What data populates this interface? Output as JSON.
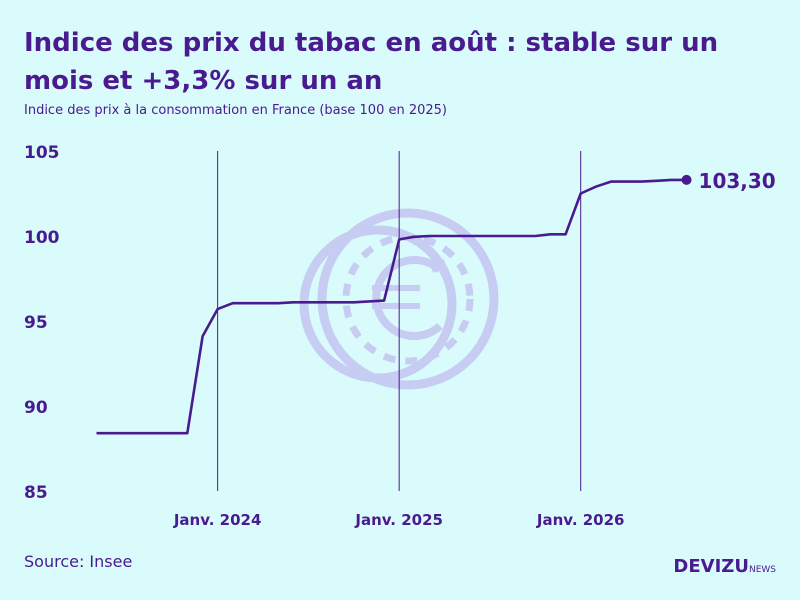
{
  "title": "Indice des prix du tabac en août : stable sur un mois et +3,3% sur un an",
  "subtitle": "Indice des prix à la consommation en France (base 100 en 2025)",
  "source": "Source: Insee",
  "brand": {
    "name": "DEVIZU",
    "suffix": "NEWS",
    "watermark": "euro-coin-icon"
  },
  "colors": {
    "background": "#d9fbfb",
    "line": "#4a1a8f",
    "watermark": "#c4c8f2"
  },
  "chart_data": {
    "type": "line",
    "title": "Indice des prix du tabac en août : stable sur un mois et +3,3% sur un an",
    "ylim": [
      85,
      105
    ],
    "yticks": [
      85,
      90,
      95,
      100,
      105
    ],
    "xlim": [
      2023.33,
      2026.58
    ],
    "x_ticks": [
      {
        "x": 2024.0,
        "label": "Janv. 2024"
      },
      {
        "x": 2025.0,
        "label": "Janv. 2025"
      },
      {
        "x": 2026.0,
        "label": "Janv. 2026"
      }
    ],
    "grid": "vertical lines at each January",
    "end_label": "103,30",
    "series": [
      {
        "x": [
          2023.333,
          2023.417,
          2023.5,
          2023.583,
          2023.667,
          2023.75,
          2023.833,
          2023.917,
          2024.0,
          2024.083,
          2024.167,
          2024.25,
          2024.333,
          2024.417,
          2024.5,
          2024.583,
          2024.667,
          2024.75,
          2024.833,
          2024.917,
          2025.0,
          2025.083,
          2025.167,
          2025.25,
          2025.333,
          2025.417,
          2025.5,
          2025.583,
          2025.667,
          2025.75,
          2025.833,
          2025.917,
          2026.0,
          2026.083,
          2026.167,
          2026.25,
          2026.333,
          2026.417,
          2026.5,
          2026.583
        ],
        "values": [
          88.4,
          88.4,
          88.4,
          88.4,
          88.4,
          88.4,
          88.4,
          94.1,
          95.7,
          96.05,
          96.05,
          96.05,
          96.05,
          96.1,
          96.1,
          96.1,
          96.1,
          96.1,
          96.15,
          96.2,
          99.8,
          99.95,
          100.0,
          100.0,
          100.0,
          100.0,
          100.0,
          100.0,
          100.0,
          100.0,
          100.1,
          100.1,
          102.5,
          102.9,
          103.2,
          103.2,
          103.2,
          103.25,
          103.3,
          103.3
        ]
      }
    ]
  }
}
